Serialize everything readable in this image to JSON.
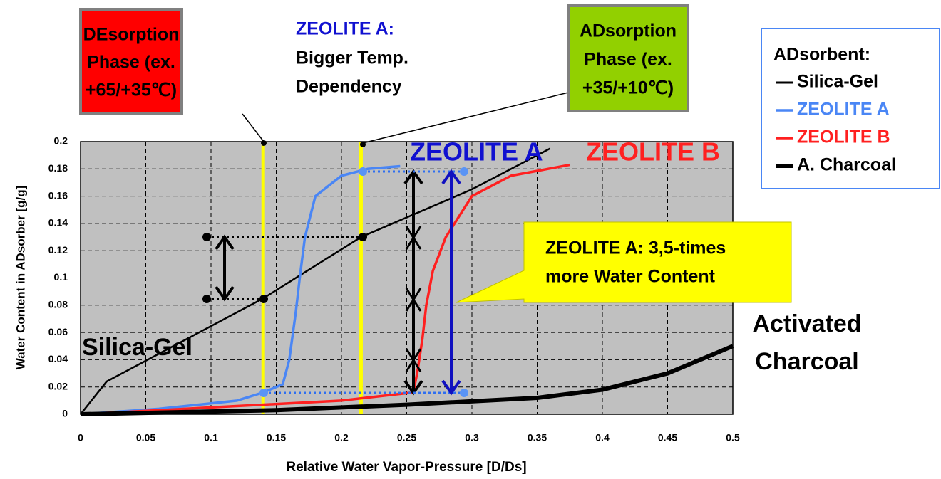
{
  "chart_data": {
    "type": "line",
    "x_label": "Relative Water Vapor-Pressure [D/Ds]",
    "y_label": "Water Content in ADsorber [g/g]",
    "xlim": [
      0,
      0.5
    ],
    "ylim": [
      0,
      0.2
    ],
    "xticks": [
      0,
      0.05,
      0.1,
      0.15,
      0.2,
      0.25,
      0.3,
      0.35,
      0.4,
      0.45,
      0.5
    ],
    "yticks": [
      0,
      0.02,
      0.04,
      0.06,
      0.08,
      0.1,
      0.12,
      0.14,
      0.16,
      0.18,
      0.2
    ],
    "grid": true,
    "vlines": [
      0.14,
      0.215
    ],
    "legend_title": "ADsorbent:",
    "series": [
      {
        "name": "Silica-Gel",
        "color": "#000000",
        "width": 2.5,
        "x": [
          0,
          0.02,
          0.14,
          0.215,
          0.3,
          0.36
        ],
        "values": [
          0,
          0.024,
          0.085,
          0.13,
          0.165,
          0.195
        ]
      },
      {
        "name": "ZEOLITE A",
        "color": "#4a86f5",
        "width": 3.5,
        "x": [
          0,
          0.06,
          0.12,
          0.14,
          0.155,
          0.16,
          0.165,
          0.168,
          0.172,
          0.18,
          0.2,
          0.22,
          0.245
        ],
        "values": [
          0,
          0.004,
          0.01,
          0.016,
          0.022,
          0.04,
          0.075,
          0.1,
          0.13,
          0.16,
          0.175,
          0.18,
          0.182
        ]
      },
      {
        "name": "ZEOLITE B",
        "color": "#ff2020",
        "width": 3.5,
        "x": [
          0,
          0.1,
          0.2,
          0.255,
          0.258,
          0.262,
          0.265,
          0.27,
          0.28,
          0.3,
          0.33,
          0.375
        ],
        "values": [
          0,
          0.005,
          0.01,
          0.016,
          0.03,
          0.055,
          0.08,
          0.105,
          0.13,
          0.16,
          0.175,
          0.183
        ]
      },
      {
        "name": "A. Charcoal",
        "color": "#000000",
        "width": 6,
        "x": [
          0,
          0.15,
          0.25,
          0.35,
          0.4,
          0.45,
          0.5
        ],
        "values": [
          0,
          0.003,
          0.007,
          0.012,
          0.018,
          0.03,
          0.05
        ]
      }
    ],
    "annotations": {
      "desorption": [
        "DEsorption",
        "Phase (ex.",
        "+65/+35℃)"
      ],
      "zeolite_a_note_title": "ZEOLITE A:",
      "zeolite_a_note": [
        "Bigger Temp.",
        "Dependency"
      ],
      "adsorption": [
        "ADsorption",
        "Phase (ex.",
        "+35/+10℃)"
      ],
      "zeolite_a_label": "ZEOLITE A",
      "zeolite_b_label": "ZEOLITE B",
      "callout": [
        "ZEOLITE A: 3,5-times",
        "more Water Content"
      ],
      "silica_label": "Silica-Gel",
      "charcoal_label": [
        "Activated",
        "Charcoal"
      ]
    }
  }
}
